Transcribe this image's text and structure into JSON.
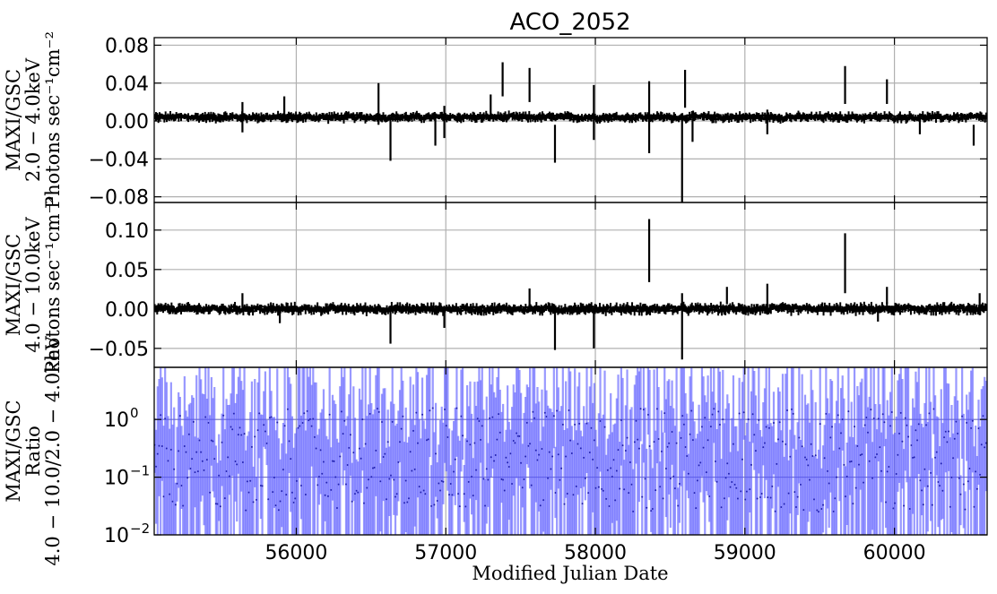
{
  "chart_data": {
    "title": "ACO_2052",
    "type": "line",
    "xlabel": "Modified Julian Date",
    "xlim": [
      55050,
      60620
    ],
    "xticks": [
      56000,
      57000,
      58000,
      59000,
      60000
    ],
    "xtick_labels": [
      "56000",
      "57000",
      "58000",
      "59000",
      "60000"
    ],
    "grid": true,
    "panels": [
      {
        "name": "panel-soft",
        "ylabel_lines": [
          "MAXI/GSC",
          "2.0 − 4.0keV",
          "Photons sec⁻¹cm⁻²"
        ],
        "ylim": [
          -0.086,
          0.088
        ],
        "yticks": [
          -0.08,
          -0.04,
          0.0,
          0.04,
          0.08
        ],
        "ytick_labels": [
          "−0.08",
          "−0.04",
          "0.00",
          "0.04",
          "0.08"
        ],
        "series_color": "#000000",
        "baseline": 0.004,
        "noise": 0.003,
        "spikes": [
          {
            "x": 55640,
            "lo": -0.012,
            "hi": 0.02
          },
          {
            "x": 55920,
            "lo": 0.0,
            "hi": 0.026
          },
          {
            "x": 56550,
            "lo": -0.004,
            "hi": 0.04
          },
          {
            "x": 56630,
            "lo": -0.042,
            "hi": 0.0
          },
          {
            "x": 56930,
            "lo": -0.026,
            "hi": 0.004
          },
          {
            "x": 56990,
            "lo": -0.018,
            "hi": 0.016
          },
          {
            "x": 57300,
            "lo": 0.005,
            "hi": 0.028
          },
          {
            "x": 57380,
            "lo": 0.026,
            "hi": 0.062
          },
          {
            "x": 57560,
            "lo": 0.02,
            "hi": 0.056
          },
          {
            "x": 57730,
            "lo": -0.044,
            "hi": -0.004
          },
          {
            "x": 57990,
            "lo": -0.02,
            "hi": 0.038
          },
          {
            "x": 58360,
            "lo": -0.034,
            "hi": 0.042
          },
          {
            "x": 58580,
            "lo": -0.086,
            "hi": 0.004
          },
          {
            "x": 58600,
            "lo": 0.014,
            "hi": 0.054
          },
          {
            "x": 58650,
            "lo": -0.022,
            "hi": 0.002
          },
          {
            "x": 59150,
            "lo": -0.014,
            "hi": 0.012
          },
          {
            "x": 59670,
            "lo": 0.018,
            "hi": 0.058
          },
          {
            "x": 59950,
            "lo": 0.018,
            "hi": 0.044
          },
          {
            "x": 60170,
            "lo": -0.014,
            "hi": 0.008
          },
          {
            "x": 60530,
            "lo": -0.026,
            "hi": -0.004
          }
        ]
      },
      {
        "name": "panel-hard",
        "ylabel_lines": [
          "MAXI/GSC",
          "4.0 − 10.0keV",
          "Photons sec⁻¹cm⁻²"
        ],
        "ylim": [
          -0.074,
          0.135
        ],
        "yticks": [
          -0.05,
          0.0,
          0.05,
          0.1
        ],
        "ytick_labels": [
          "−0.05",
          "0.00",
          "0.05",
          "0.10"
        ],
        "series_color": "#000000",
        "baseline": 0.0,
        "noise": 0.004,
        "spikes": [
          {
            "x": 55640,
            "lo": -0.004,
            "hi": 0.02
          },
          {
            "x": 55890,
            "lo": -0.018,
            "hi": 0.002
          },
          {
            "x": 56630,
            "lo": -0.044,
            "hi": 0.002
          },
          {
            "x": 56990,
            "lo": -0.024,
            "hi": 0.004
          },
          {
            "x": 57560,
            "lo": -0.004,
            "hi": 0.026
          },
          {
            "x": 57730,
            "lo": -0.052,
            "hi": 0.002
          },
          {
            "x": 57990,
            "lo": -0.05,
            "hi": -0.002
          },
          {
            "x": 58360,
            "lo": 0.034,
            "hi": 0.114
          },
          {
            "x": 58580,
            "lo": -0.064,
            "hi": 0.02
          },
          {
            "x": 58880,
            "lo": 0.006,
            "hi": 0.028
          },
          {
            "x": 59150,
            "lo": 0.002,
            "hi": 0.032
          },
          {
            "x": 59670,
            "lo": 0.02,
            "hi": 0.096
          },
          {
            "x": 59890,
            "lo": -0.016,
            "hi": 0.004
          },
          {
            "x": 59950,
            "lo": 0.006,
            "hi": 0.028
          },
          {
            "x": 60570,
            "lo": -0.008,
            "hi": 0.02
          }
        ]
      },
      {
        "name": "panel-ratio",
        "ylabel_lines": [
          "MAXI/GSC",
          "Ratio",
          "4.0 − 10.0/2.0 − 4.0keV"
        ],
        "yscale": "log",
        "ylim": [
          0.01,
          8
        ],
        "yticks": [
          0.01,
          0.1,
          1
        ],
        "ytick_labels": [
          "10",
          "10",
          "10"
        ],
        "ytick_exponents": [
          "−2",
          "−1",
          "0"
        ],
        "series_color": "#5555ff",
        "hlines": [
          0.1,
          1.0
        ]
      }
    ]
  }
}
